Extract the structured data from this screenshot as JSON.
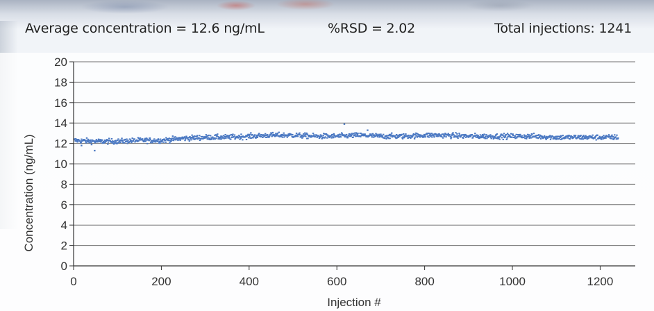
{
  "header": {
    "average": "Average concentration = 12.6 ng/mL",
    "rsd": "%RSD = 2.02",
    "total": "Total injections: 1241"
  },
  "chart_data": {
    "type": "scatter",
    "title": "",
    "xlabel": "Injection #",
    "ylabel": "Concentration (ng/mL)",
    "xlim": [
      0,
      1280
    ],
    "ylim": [
      0,
      20
    ],
    "xticks": [
      0,
      200,
      400,
      600,
      800,
      1000,
      1200
    ],
    "yticks": [
      0,
      2,
      4,
      6,
      8,
      10,
      12,
      14,
      16,
      18,
      20
    ],
    "grid": "horizontal",
    "legend": "none",
    "color": "#4a78c2",
    "n_points": 1241,
    "trend": {
      "x": [
        1,
        50,
        100,
        150,
        200,
        250,
        300,
        350,
        400,
        450,
        500,
        550,
        600,
        650,
        700,
        750,
        800,
        850,
        900,
        950,
        1000,
        1050,
        1100,
        1150,
        1200,
        1241
      ],
      "y": [
        12.3,
        12.2,
        12.2,
        12.3,
        12.3,
        12.5,
        12.6,
        12.6,
        12.7,
        12.8,
        12.8,
        12.7,
        12.7,
        12.8,
        12.7,
        12.7,
        12.8,
        12.8,
        12.7,
        12.7,
        12.7,
        12.7,
        12.6,
        12.6,
        12.6,
        12.6
      ]
    },
    "spread": 0.25,
    "outliers": [
      {
        "x": 48,
        "y": 11.3
      },
      {
        "x": 617,
        "y": 13.9
      },
      {
        "x": 670,
        "y": 13.3
      },
      {
        "x": 18,
        "y": 11.8
      }
    ]
  }
}
